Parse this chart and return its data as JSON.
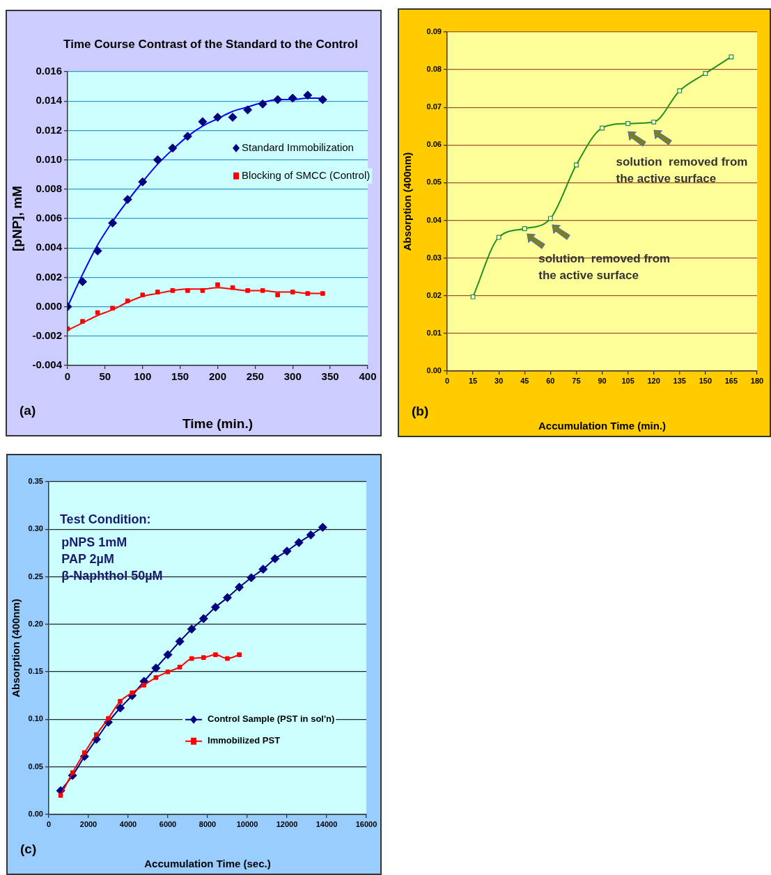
{
  "chart_data": [
    {
      "type": "scatter",
      "title": "Time Course Contrast of the Standard to the Control",
      "xlabel": "Time (min.)",
      "ylabel": "[pNP], mM",
      "x": [
        0,
        20,
        40,
        60,
        80,
        100,
        120,
        140,
        160,
        180,
        200,
        220,
        240,
        260,
        280,
        300,
        320,
        340
      ],
      "series": [
        {
          "name": "Standard Immobilization",
          "color": "#000080",
          "marker": "diamond",
          "values": [
            0,
            0.0017,
            0.0038,
            0.0057,
            0.0073,
            0.0085,
            0.01,
            0.0108,
            0.0116,
            0.0126,
            0.0129,
            0.0129,
            0.0134,
            0.0138,
            0.0141,
            0.0142,
            0.0144,
            0.0141
          ]
        },
        {
          "name": "Blocking of SMCC (Control)",
          "color": "#ff0000",
          "marker": "square",
          "values": [
            -0.0015,
            -0.001,
            -0.0004,
            -0.0001,
            0.0004,
            0.0008,
            0.001,
            0.0011,
            0.0011,
            0.0011,
            0.0015,
            0.0013,
            0.0011,
            0.0011,
            0.0008,
            0.001,
            0.0009,
            0.0009
          ]
        },
        {
          "type": "line",
          "color": "#0000ff",
          "marker": "none",
          "x": [
            0,
            20,
            40,
            60,
            80,
            100,
            120,
            140,
            160,
            180,
            200,
            220,
            240,
            260,
            280,
            300,
            320,
            340
          ],
          "values": [
            0,
            0.0022,
            0.0042,
            0.0058,
            0.0072,
            0.0085,
            0.0097,
            0.0107,
            0.0116,
            0.0123,
            0.0128,
            0.0133,
            0.0136,
            0.0139,
            0.0141,
            0.0141,
            0.0142,
            0.0142
          ]
        },
        {
          "type": "line",
          "color": "#ff0000",
          "marker": "none",
          "x": [
            0,
            20,
            40,
            60,
            80,
            100,
            120,
            140,
            160,
            180,
            200,
            220,
            240,
            260,
            280,
            300,
            320,
            340
          ],
          "values": [
            -0.0016,
            -0.0011,
            -0.0006,
            -0.0002,
            0.0003,
            0.0007,
            0.0009,
            0.0011,
            0.0012,
            0.0012,
            0.0013,
            0.0012,
            0.0011,
            0.0011,
            0.001,
            0.001,
            0.0009,
            0.0009
          ]
        }
      ],
      "xlim": [
        0,
        400
      ],
      "xticks": [
        0,
        50,
        100,
        150,
        200,
        250,
        300,
        350,
        400
      ],
      "ylim": [
        -0.004,
        0.016
      ],
      "yticks": [
        {
          "value": -0.004,
          "label": "-0.004"
        },
        {
          "value": -0.002,
          "label": "-0.002"
        },
        {
          "value": 0,
          "label": "0.000"
        },
        {
          "value": 0.002,
          "label": "0.002"
        },
        {
          "value": 0.004,
          "label": "0.004"
        },
        {
          "value": 0.006,
          "label": "0.006"
        },
        {
          "value": 0.008,
          "label": "0.008"
        },
        {
          "value": 0.01,
          "label": "0.010"
        },
        {
          "value": 0.012,
          "label": "0.012"
        },
        {
          "value": 0.014,
          "label": "0.014"
        },
        {
          "value": 0.016,
          "label": "0.016"
        }
      ],
      "grid": "y",
      "legend": "top right",
      "annotations": [
        "(a)"
      ]
    },
    {
      "type": "line",
      "xlabel": "Accumulation Time (min.)",
      "ylabel": "Absorption (400nm)",
      "marker": "square",
      "x": [
        15,
        30,
        45,
        60,
        75,
        90,
        105,
        120,
        135,
        150,
        165
      ],
      "series": [
        {
          "color": "#1f8f1f",
          "values": [
            0.0197,
            0.0355,
            0.0378,
            0.0405,
            0.0547,
            0.0645,
            0.0657,
            0.0661,
            0.0744,
            0.079,
            0.0834
          ]
        }
      ],
      "xlim": [
        0,
        180
      ],
      "xticks": [
        0,
        15,
        30,
        45,
        60,
        75,
        90,
        105,
        120,
        135,
        150,
        165,
        180
      ],
      "ylim": [
        0,
        0.09
      ],
      "yticks": [
        {
          "value": 0,
          "label": "0.00"
        },
        0.01,
        0.02,
        0.03,
        0.04,
        0.05,
        0.06,
        0.07,
        0.08,
        0.09
      ],
      "grid": "y",
      "annotations": [
        "solution  removed from\nthe active surface",
        "solution  removed from\nthe active surface",
        "(b)"
      ]
    },
    {
      "type": "line",
      "xlabel": "Accumulation Time (sec.)",
      "ylabel": "Absorption (400nm)",
      "series": [
        {
          "name": "Control Sample (PST in sol'n)",
          "color": "#000080",
          "marker": "diamond",
          "x": [
            600,
            1200,
            1800,
            2400,
            3000,
            3600,
            4200,
            4800,
            5400,
            6000,
            6600,
            7200,
            7800,
            8400,
            9000,
            9600,
            10200,
            10800,
            11400,
            12000,
            12600,
            13200,
            13800
          ],
          "values": [
            0.025,
            0.041,
            0.061,
            0.079,
            0.097,
            0.112,
            0.125,
            0.14,
            0.154,
            0.168,
            0.182,
            0.195,
            0.206,
            0.218,
            0.228,
            0.239,
            0.249,
            0.258,
            0.269,
            0.277,
            0.286,
            0.294,
            0.302
          ]
        },
        {
          "name": "Immobilized PST",
          "color": "#ff0000",
          "marker": "square",
          "x": [
            600,
            1200,
            1800,
            2400,
            3000,
            3600,
            4200,
            4800,
            5400,
            6000,
            6600,
            7200,
            7800,
            8400,
            9000,
            9600
          ],
          "values": [
            0.02,
            0.044,
            0.065,
            0.084,
            0.101,
            0.119,
            0.128,
            0.136,
            0.144,
            0.15,
            0.155,
            0.164,
            0.165,
            0.168,
            0.164,
            0.168
          ]
        }
      ],
      "xlim": [
        0,
        16000
      ],
      "xticks": [
        0,
        2000,
        4000,
        6000,
        8000,
        10000,
        12000,
        14000,
        16000
      ],
      "ylim": [
        0,
        0.35
      ],
      "yticks": [
        {
          "value": 0,
          "label": "0.00"
        },
        {
          "value": 0.05,
          "label": "0.05"
        },
        {
          "value": 0.1,
          "label": "0.10"
        },
        {
          "value": 0.15,
          "label": "0.15"
        },
        {
          "value": 0.2,
          "label": "0.20"
        },
        {
          "value": 0.25,
          "label": "0.25"
        },
        {
          "value": 0.3,
          "label": "0.30"
        },
        {
          "value": 0.35,
          "label": "0.35"
        }
      ],
      "grid": "y",
      "legend": "bottom right",
      "annotations": [
        "Test Condition:",
        "pNPS 1mM",
        "PAP 2µM",
        "β-Naphthol 50µM",
        "(c)"
      ]
    }
  ]
}
